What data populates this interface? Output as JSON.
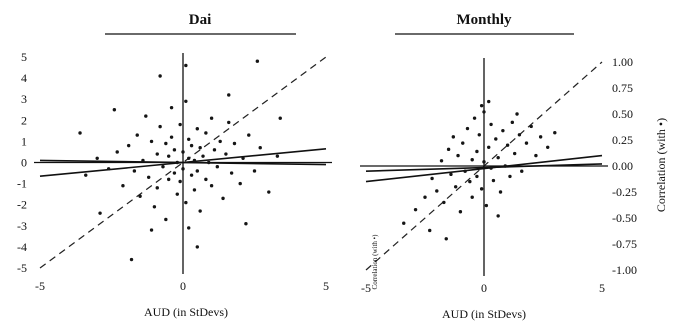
{
  "chart_data": [
    {
      "type": "scatter",
      "title": "Dai",
      "xlabel": "AUD (in StDevs)",
      "ylabel": "",
      "xlim": [
        -5,
        5
      ],
      "ylim": [
        -5,
        5
      ],
      "x_ticks": [
        "-5",
        "0",
        "5"
      ],
      "y_ticks": [
        "5",
        "4",
        "3",
        "2",
        "1",
        "0",
        "-1",
        "-2",
        "-3",
        "-4",
        "-5"
      ],
      "points": [
        [
          -3.4,
          -0.6
        ],
        [
          -3.0,
          0.2
        ],
        [
          -2.6,
          -0.3
        ],
        [
          -2.3,
          0.5
        ],
        [
          -2.1,
          -1.1
        ],
        [
          -1.9,
          0.8
        ],
        [
          -1.7,
          -0.4
        ],
        [
          -1.6,
          1.3
        ],
        [
          -1.5,
          -1.6
        ],
        [
          -1.4,
          0.1
        ],
        [
          -1.3,
          2.2
        ],
        [
          -1.2,
          -0.7
        ],
        [
          -1.1,
          1.0
        ],
        [
          -1.0,
          -2.1
        ],
        [
          -0.9,
          0.4
        ],
        [
          -0.9,
          -1.2
        ],
        [
          -0.8,
          1.7
        ],
        [
          -0.7,
          -0.2
        ],
        [
          -0.6,
          0.9
        ],
        [
          -0.6,
          -2.7
        ],
        [
          -0.5,
          0.3
        ],
        [
          -0.5,
          -0.8
        ],
        [
          -0.4,
          2.6
        ],
        [
          -0.4,
          1.2
        ],
        [
          -0.3,
          -0.5
        ],
        [
          -0.3,
          0.6
        ],
        [
          -0.2,
          -1.5
        ],
        [
          -0.2,
          0.0
        ],
        [
          -0.1,
          1.8
        ],
        [
          -0.1,
          -0.9
        ],
        [
          0.0,
          0.5
        ],
        [
          0.0,
          -0.3
        ],
        [
          0.1,
          2.9
        ],
        [
          0.1,
          -1.9
        ],
        [
          0.2,
          0.2
        ],
        [
          0.2,
          1.1
        ],
        [
          0.3,
          -0.6
        ],
        [
          0.3,
          0.8
        ],
        [
          0.4,
          -1.3
        ],
        [
          0.4,
          0.1
        ],
        [
          0.5,
          1.6
        ],
        [
          0.5,
          -0.4
        ],
        [
          0.6,
          0.7
        ],
        [
          0.6,
          -2.3
        ],
        [
          0.7,
          0.3
        ],
        [
          0.8,
          1.4
        ],
        [
          0.8,
          -0.8
        ],
        [
          0.9,
          0.0
        ],
        [
          1.0,
          2.1
        ],
        [
          1.0,
          -1.1
        ],
        [
          1.1,
          0.6
        ],
        [
          1.2,
          -0.2
        ],
        [
          1.3,
          1.0
        ],
        [
          1.4,
          -1.7
        ],
        [
          1.5,
          0.4
        ],
        [
          1.6,
          1.9
        ],
        [
          1.7,
          -0.5
        ],
        [
          1.8,
          0.9
        ],
        [
          2.0,
          -1.0
        ],
        [
          2.1,
          0.2
        ],
        [
          2.3,
          1.3
        ],
        [
          2.5,
          -0.4
        ],
        [
          2.7,
          0.7
        ],
        [
          3.0,
          -1.4
        ],
        [
          3.3,
          0.3
        ],
        [
          -0.8,
          4.1
        ],
        [
          0.1,
          4.6
        ],
        [
          2.6,
          4.8
        ],
        [
          -2.9,
          -2.4
        ],
        [
          -1.1,
          -3.2
        ],
        [
          0.2,
          -3.1
        ],
        [
          0.5,
          -4.0
        ],
        [
          -1.8,
          -4.6
        ],
        [
          1.6,
          3.2
        ],
        [
          -2.4,
          2.5
        ],
        [
          3.4,
          2.1
        ],
        [
          -3.6,
          1.4
        ],
        [
          2.2,
          -2.9
        ]
      ],
      "fit_lines": [
        {
          "x": [
            -5,
            5
          ],
          "y": [
            -0.65,
            0.65
          ]
        },
        {
          "x": [
            -5,
            5
          ],
          "y": [
            0.1,
            -0.1
          ]
        }
      ],
      "reference_line": {
        "x": [
          -5,
          5
        ],
        "y": [
          -5,
          5
        ],
        "style": "dashed"
      },
      "grid": false
    },
    {
      "type": "scatter",
      "title": "Monthly",
      "xlabel": "AUD (in StDevs)",
      "ylabel": "Correlation (with •)",
      "ylabel_secondary": "Correlation (with •)",
      "xlim": [
        -5,
        5
      ],
      "ylim": [
        -1.0,
        1.0
      ],
      "x_ticks": [
        "-5",
        "0",
        "5"
      ],
      "y_ticks": [
        "1.00",
        "0.75",
        "0.50",
        "0.25",
        "0.00",
        "-0.25",
        "-0.50",
        "-0.75",
        "-1.00"
      ],
      "points": [
        [
          -3.4,
          -0.55
        ],
        [
          -2.9,
          -0.42
        ],
        [
          -2.5,
          -0.3
        ],
        [
          -2.2,
          -0.12
        ],
        [
          -2.0,
          -0.24
        ],
        [
          -1.8,
          0.05
        ],
        [
          -1.7,
          -0.35
        ],
        [
          -1.5,
          0.16
        ],
        [
          -1.4,
          -0.08
        ],
        [
          -1.3,
          0.28
        ],
        [
          -1.2,
          -0.2
        ],
        [
          -1.1,
          0.1
        ],
        [
          -1.0,
          -0.44
        ],
        [
          -0.9,
          0.22
        ],
        [
          -0.8,
          -0.05
        ],
        [
          -0.7,
          0.36
        ],
        [
          -0.6,
          -0.15
        ],
        [
          -0.5,
          0.06
        ],
        [
          -0.5,
          -0.3
        ],
        [
          -0.4,
          0.46
        ],
        [
          -0.3,
          0.14
        ],
        [
          -0.3,
          -0.1
        ],
        [
          -0.2,
          0.3
        ],
        [
          -0.1,
          -0.22
        ],
        [
          0.0,
          0.04
        ],
        [
          0.0,
          0.52
        ],
        [
          0.1,
          -0.38
        ],
        [
          0.2,
          0.18
        ],
        [
          0.3,
          -0.02
        ],
        [
          0.3,
          0.4
        ],
        [
          0.4,
          -0.14
        ],
        [
          0.5,
          0.26
        ],
        [
          0.6,
          0.08
        ],
        [
          0.7,
          -0.25
        ],
        [
          0.8,
          0.34
        ],
        [
          0.9,
          0.0
        ],
        [
          1.0,
          0.2
        ],
        [
          1.1,
          -0.1
        ],
        [
          1.2,
          0.42
        ],
        [
          1.3,
          0.12
        ],
        [
          1.5,
          0.3
        ],
        [
          1.6,
          -0.05
        ],
        [
          1.8,
          0.22
        ],
        [
          2.0,
          0.38
        ],
        [
          2.2,
          0.1
        ],
        [
          2.4,
          0.28
        ],
        [
          2.7,
          0.18
        ],
        [
          3.0,
          0.32
        ],
        [
          -2.3,
          -0.62
        ],
        [
          -1.6,
          -0.7
        ],
        [
          0.2,
          0.62
        ],
        [
          -0.1,
          0.58
        ],
        [
          0.6,
          -0.48
        ],
        [
          1.4,
          0.5
        ]
      ],
      "fit_lines": [
        {
          "x": [
            -5,
            5
          ],
          "y": [
            -0.15,
            0.1
          ]
        },
        {
          "x": [
            -5,
            5
          ],
          "y": [
            -0.05,
            0.02
          ]
        }
      ],
      "reference_line": {
        "x": [
          -5,
          5
        ],
        "y": [
          -1,
          1
        ],
        "style": "dashed"
      },
      "grid": false
    }
  ]
}
